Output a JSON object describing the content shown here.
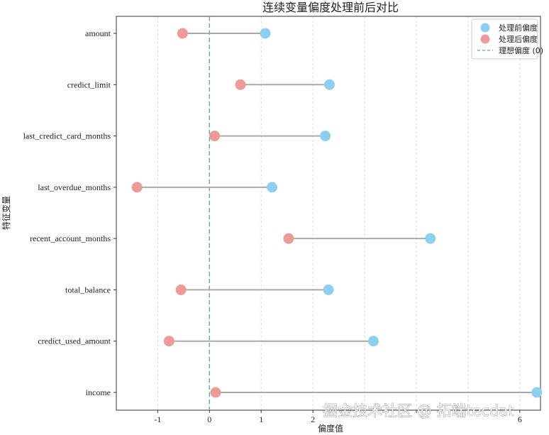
{
  "chart_data": {
    "type": "scatter",
    "style": "dumbbell",
    "title": "连续变量偏度处理前后对比",
    "xlabel": "偏度值",
    "ylabel": "特征变量",
    "xlim": [
      -1.8,
      6.4
    ],
    "xticks": [
      -1,
      0,
      1,
      2,
      3,
      4,
      5,
      6
    ],
    "xtick_labels": [
      "-1",
      "0",
      "1",
      "2",
      "",
      "",
      "",
      "6"
    ],
    "grid": "x-dashed",
    "categories": [
      "amount",
      "credict_limit",
      "last_credict_card_months",
      "last_overdue_months",
      "recent_account_months",
      "total_balance",
      "credict_used_amount",
      "income"
    ],
    "series": [
      {
        "name": "处理前偏度",
        "color": "#8ecfef",
        "values": [
          1.08,
          2.32,
          2.24,
          1.21,
          4.27,
          2.3,
          3.17,
          6.33
        ]
      },
      {
        "name": "处理后偏度",
        "color": "#ec9a9a",
        "values": [
          -0.52,
          0.6,
          0.1,
          -1.4,
          1.53,
          -0.55,
          -0.78,
          0.12
        ]
      }
    ],
    "reference_line": {
      "name": "理想偏度 (0)",
      "x": 0,
      "color": "#6aa89a",
      "style": "dashed"
    },
    "connector_color": "#aaaaaa",
    "legend": "top-right"
  },
  "watermark": "掘金技术社区 @ 拓端tecdat"
}
